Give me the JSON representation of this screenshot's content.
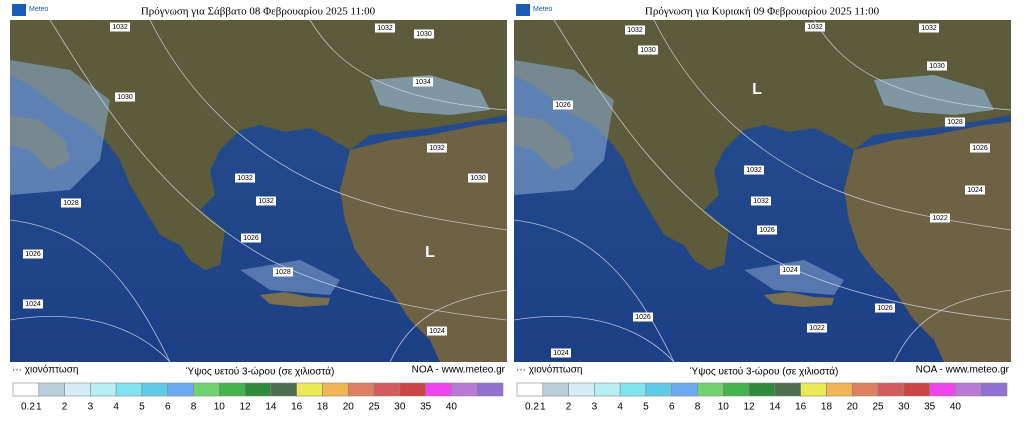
{
  "panels": [
    {
      "title": "Πρόγνωση για Σάββατο 08 Φεβρουαρίου 2025 11:00",
      "logo": "Meteo",
      "pressure_labels": [
        "1032",
        "1032",
        "1030",
        "1034",
        "1030",
        "1032",
        "1030",
        "1028",
        "1032",
        "1032",
        "1026",
        "1028",
        "1026",
        "1024",
        "1024",
        "L"
      ],
      "snow_label": "··· χιονόπτωση",
      "scale_title": "Ύψος υετού 3-ώρου (σε χιλιοστά)",
      "source": "NOA - www.meteo.gr"
    },
    {
      "title": "Πρόγνωση για Κυριακή 09 Φεβρουαρίου 2025 11:00",
      "logo": "Meteo",
      "pressure_labels": [
        "1032",
        "1030",
        "1032",
        "1032",
        "1030",
        "L",
        "1026",
        "1028",
        "1026",
        "1032",
        "1024",
        "1032",
        "1022",
        "1026",
        "1024",
        "1026",
        "1022",
        "1026",
        "1024"
      ],
      "snow_label": "··· χιονόπτωση",
      "scale_title": "Ύψος υετού 3-ώρου (σε χιλιοστά)",
      "source": "NOA - www.meteo.gr"
    }
  ],
  "scale": [
    {
      "label": "0.2",
      "color": "#ffffff"
    },
    {
      "label": "1",
      "color": "#b8cfd8"
    },
    {
      "label": "2",
      "color": "#d4ecf5"
    },
    {
      "label": "3",
      "color": "#b6eef4"
    },
    {
      "label": "4",
      "color": "#7fe4f0"
    },
    {
      "label": "5",
      "color": "#5fcbe8"
    },
    {
      "label": "6",
      "color": "#6aaaf0"
    },
    {
      "label": "8",
      "color": "#6fd36f"
    },
    {
      "label": "10",
      "color": "#44b34c"
    },
    {
      "label": "12",
      "color": "#2f8b3c"
    },
    {
      "label": "14",
      "color": "#4d6d4f"
    },
    {
      "label": "16",
      "color": "#eaea55"
    },
    {
      "label": "18",
      "color": "#f2b555"
    },
    {
      "label": "20",
      "color": "#e08060"
    },
    {
      "label": "25",
      "color": "#d45c5c"
    },
    {
      "label": "30",
      "color": "#cc4444"
    },
    {
      "label": "35",
      "color": "#ee44ee"
    },
    {
      "label": "40",
      "color": "#b87ad4"
    },
    {
      "label": "",
      "color": "#9070d0"
    }
  ]
}
